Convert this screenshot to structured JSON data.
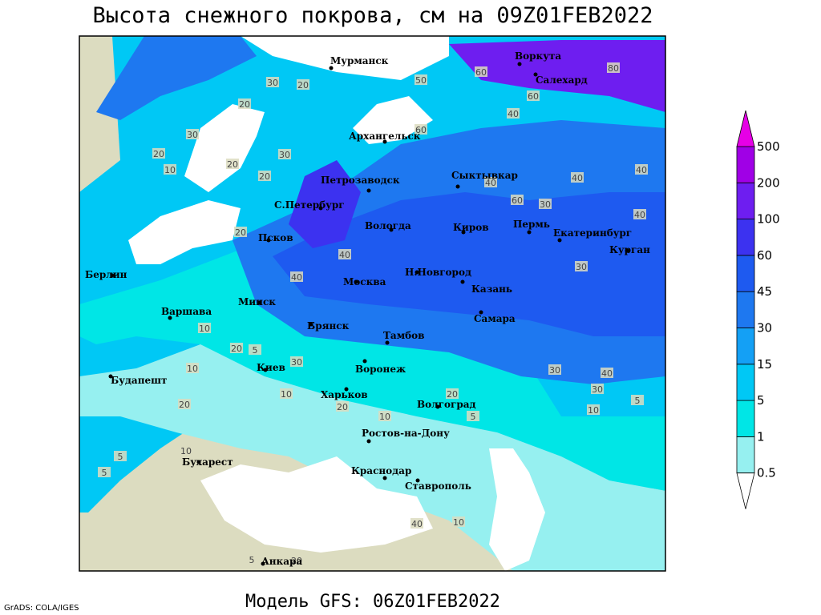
{
  "title": "Высота снежного покрова, см на 09Z01FEB2022",
  "subtitle": "Модель GFS: 06Z01FEB2022",
  "credit": "GrADS: COLA/IGES",
  "legend": {
    "levels": [
      0.5,
      1,
      5,
      15,
      30,
      45,
      60,
      100,
      200,
      500
    ],
    "below_color": "#ffffff",
    "colors": [
      "#96f0f0",
      "#00e6e6",
      "#00c8f5",
      "#14a0f5",
      "#1e78f0",
      "#1e5af0",
      "#3c32f0",
      "#6e1ef0",
      "#a000e6"
    ],
    "above_color": "#e600e6"
  },
  "cities": [
    "Мурманск",
    "Воркута",
    "Салехард",
    "Архангельск",
    "Петрозаводск",
    "Сыктывкар",
    "С.Петербург",
    "Вологда",
    "Киров",
    "Пермь",
    "Екатеринбург",
    "Курган",
    "Псков",
    "Н.Новгород",
    "Казань",
    "Берлин",
    "Москва",
    "Минск",
    "Варшава",
    "Самара",
    "Брянск",
    "Тамбов",
    "Киев",
    "Воронеж",
    "Будапешт",
    "Харьков",
    "Волгоград",
    "Ростов-на-Дону",
    "Бухарест",
    "Краснодар",
    "Ставрополь",
    "Анкара"
  ],
  "contour_labels": [
    30,
    20,
    20,
    60,
    50,
    80,
    60,
    60,
    40,
    30,
    20,
    10,
    20,
    30,
    20,
    40,
    60,
    30,
    40,
    40,
    20,
    40,
    40,
    30,
    40,
    20,
    10,
    5,
    10,
    30,
    10,
    30,
    40,
    30,
    5,
    10,
    20,
    20,
    10,
    5,
    10,
    20,
    5,
    40,
    20,
    10,
    5,
    5
  ]
}
